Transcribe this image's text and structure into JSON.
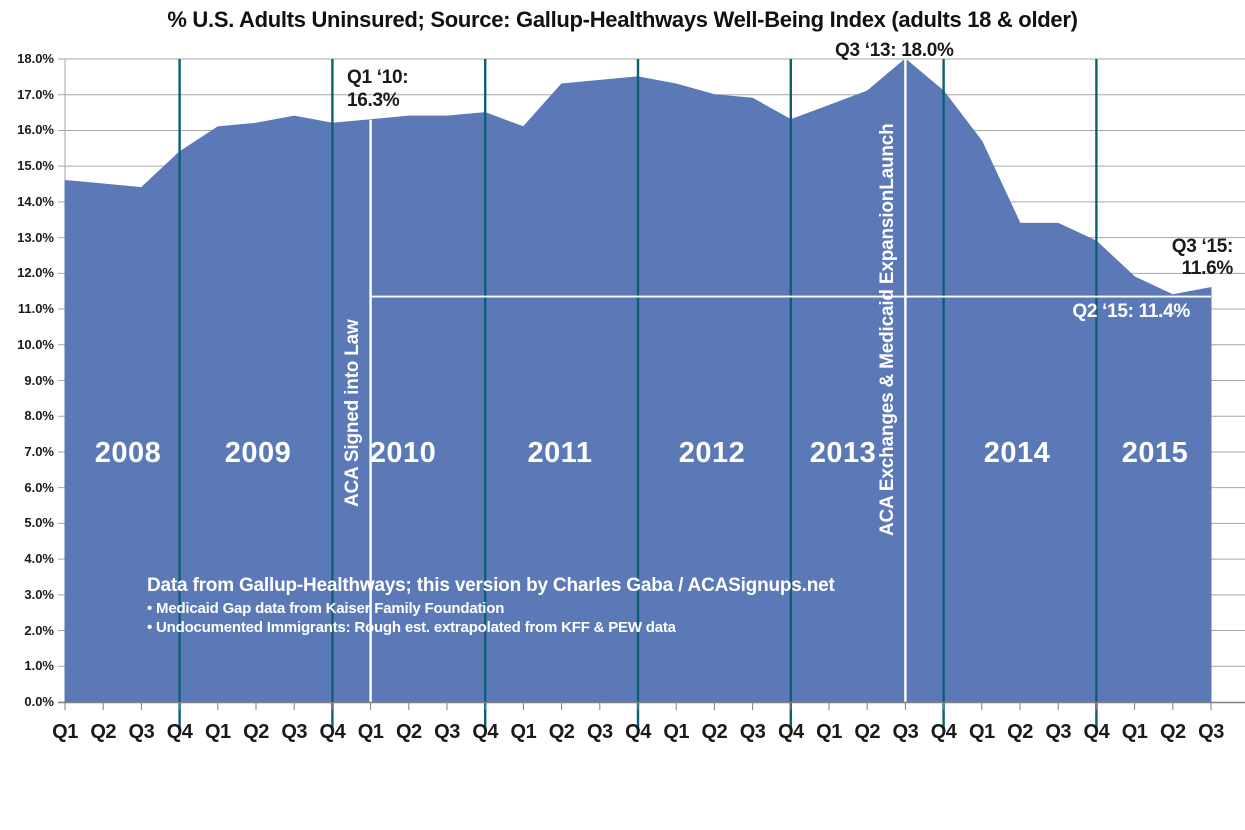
{
  "title": "% U.S. Adults Uninsured; Source: Gallup-Healthways Well-Being Index (adults 18 & older)",
  "chart_data": {
    "type": "area",
    "x_labels": [
      "Q1",
      "Q2",
      "Q3",
      "Q4",
      "Q1",
      "Q2",
      "Q3",
      "Q4",
      "Q1",
      "Q2",
      "Q3",
      "Q4",
      "Q1",
      "Q2",
      "Q3",
      "Q4",
      "Q1",
      "Q2",
      "Q3",
      "Q4",
      "Q1",
      "Q2",
      "Q3",
      "Q4",
      "Q1",
      "Q2",
      "Q3",
      "Q4",
      "Q1",
      "Q2",
      "Q3"
    ],
    "year_labels": [
      "2008",
      "2009",
      "2010",
      "2011",
      "2012",
      "2013",
      "2014",
      "2015"
    ],
    "series": [
      {
        "name": "% of U.S. adults uninsured",
        "values": [
          14.6,
          14.5,
          14.4,
          15.4,
          16.1,
          16.2,
          16.4,
          16.2,
          16.3,
          16.4,
          16.4,
          16.5,
          16.1,
          17.3,
          17.4,
          17.5,
          17.3,
          17.0,
          16.9,
          16.3,
          16.7,
          17.1,
          18.0,
          17.1,
          15.7,
          13.4,
          13.4,
          12.9,
          11.9,
          11.4,
          11.6
        ]
      }
    ],
    "ylim": [
      0,
      18
    ],
    "ytick_step": 1,
    "ytick_labels": [
      "18.0%",
      "17.0%",
      "16.0%",
      "15.0%",
      "14.0%",
      "13.0%",
      "12.0%",
      "11.0%",
      "10.0%",
      "9.0%",
      "8.0%",
      "7.0%",
      "6.0%",
      "5.0%",
      "4.0%",
      "3.0%",
      "2.0%",
      "1.0%",
      "0.0%"
    ],
    "grid": "horizontal gray lines each 1%; dark teal vertical lines at Q4 of each year",
    "legend_position": "none",
    "event_lines": [
      {
        "quarter_index": 8,
        "label": "ACA Signed into Law"
      },
      {
        "quarter_index": 22,
        "label": "ACA Exchanges & Medicaid ExpansionLaunch"
      }
    ],
    "hline": {
      "value": 11.35,
      "label": "Q2 ‘15: 11.4%"
    }
  },
  "annotations": {
    "q1_10": {
      "line1": "Q1 ‘10:",
      "line2": "16.3%"
    },
    "q3_13": {
      "text": "Q3 ‘13: 18.0%"
    },
    "q3_15": {
      "line1": "Q3 ‘15:",
      "line2": "11.6%"
    },
    "q2_15": {
      "text": "Q2 ‘15: 11.4%"
    }
  },
  "source": {
    "line1": "Data from Gallup-Healthways; this version by Charles Gaba / ACASignups.net",
    "line2": "• Medicaid Gap data from Kaiser Family Foundation",
    "line3": "• Undocumented Immigrants: Rough est. extrapolated from KFF & PEW data"
  },
  "colors": {
    "area_fill": "#5b78b7",
    "year_line": "#0e5f73",
    "reference_line": "#ffffff",
    "gridline": "#a6a6a6",
    "axis_line": "#7f7f7f",
    "text": "#1a1a1a"
  }
}
